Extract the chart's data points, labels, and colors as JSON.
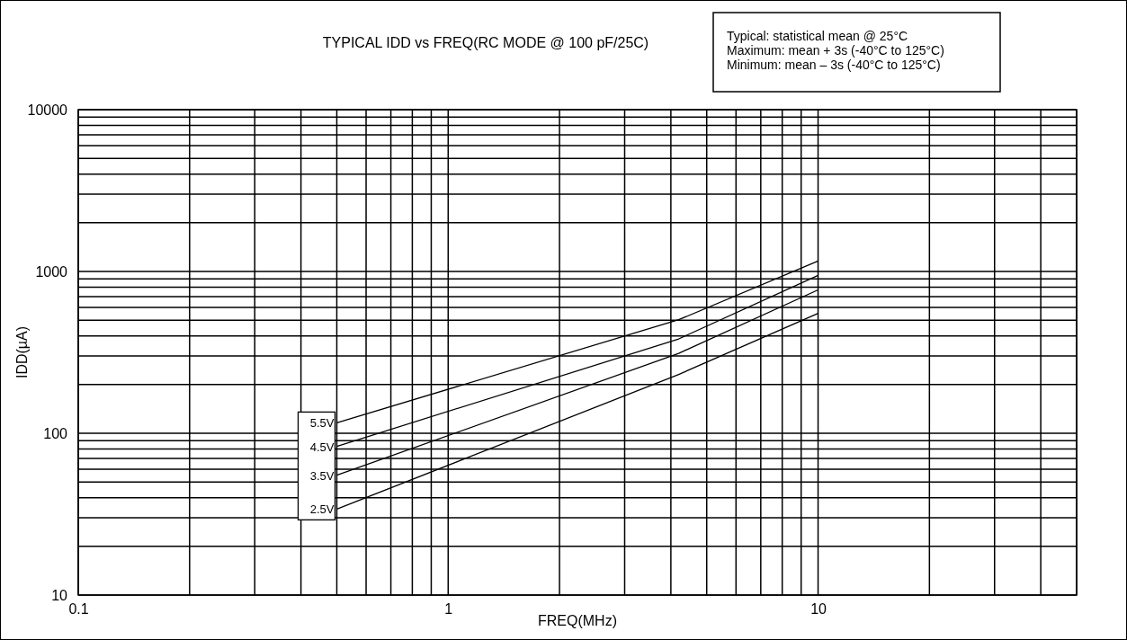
{
  "chart_data": {
    "type": "line",
    "title": "TYPICAL IDD vs FREQ(RC MODE @ 100 pF/25C)",
    "xlabel": "FREQ(MHz)",
    "ylabel": "IDD(µA)",
    "annotations": [
      "Typical:  statistical mean @ 25°C",
      "Maximum:  mean + 3s (-40°C to 125°C)",
      "Minimum:   mean – 3s (-40°C to 125°C)"
    ],
    "x": [
      0.5,
      4.2,
      10
    ],
    "series": [
      {
        "name": "5.5V",
        "color": "#000000",
        "values": [
          116,
          503,
          1159
        ]
      },
      {
        "name": "4.5V",
        "color": "#000000",
        "values": [
          83,
          383,
          946
        ]
      },
      {
        "name": "3.5V",
        "color": "#000000",
        "values": [
          55,
          312,
          769
        ]
      },
      {
        "name": "2.5V",
        "color": "#000000",
        "values": [
          34,
          231,
          551
        ]
      }
    ],
    "log": "xy",
    "xlim": [
      0.1,
      50
    ],
    "xticks": [
      0.1,
      1,
      10
    ],
    "ylim": [
      10,
      10000
    ],
    "yticks": [
      10,
      100,
      1000,
      10000
    ],
    "grid": true,
    "marker": "none",
    "line_style": "solid"
  }
}
